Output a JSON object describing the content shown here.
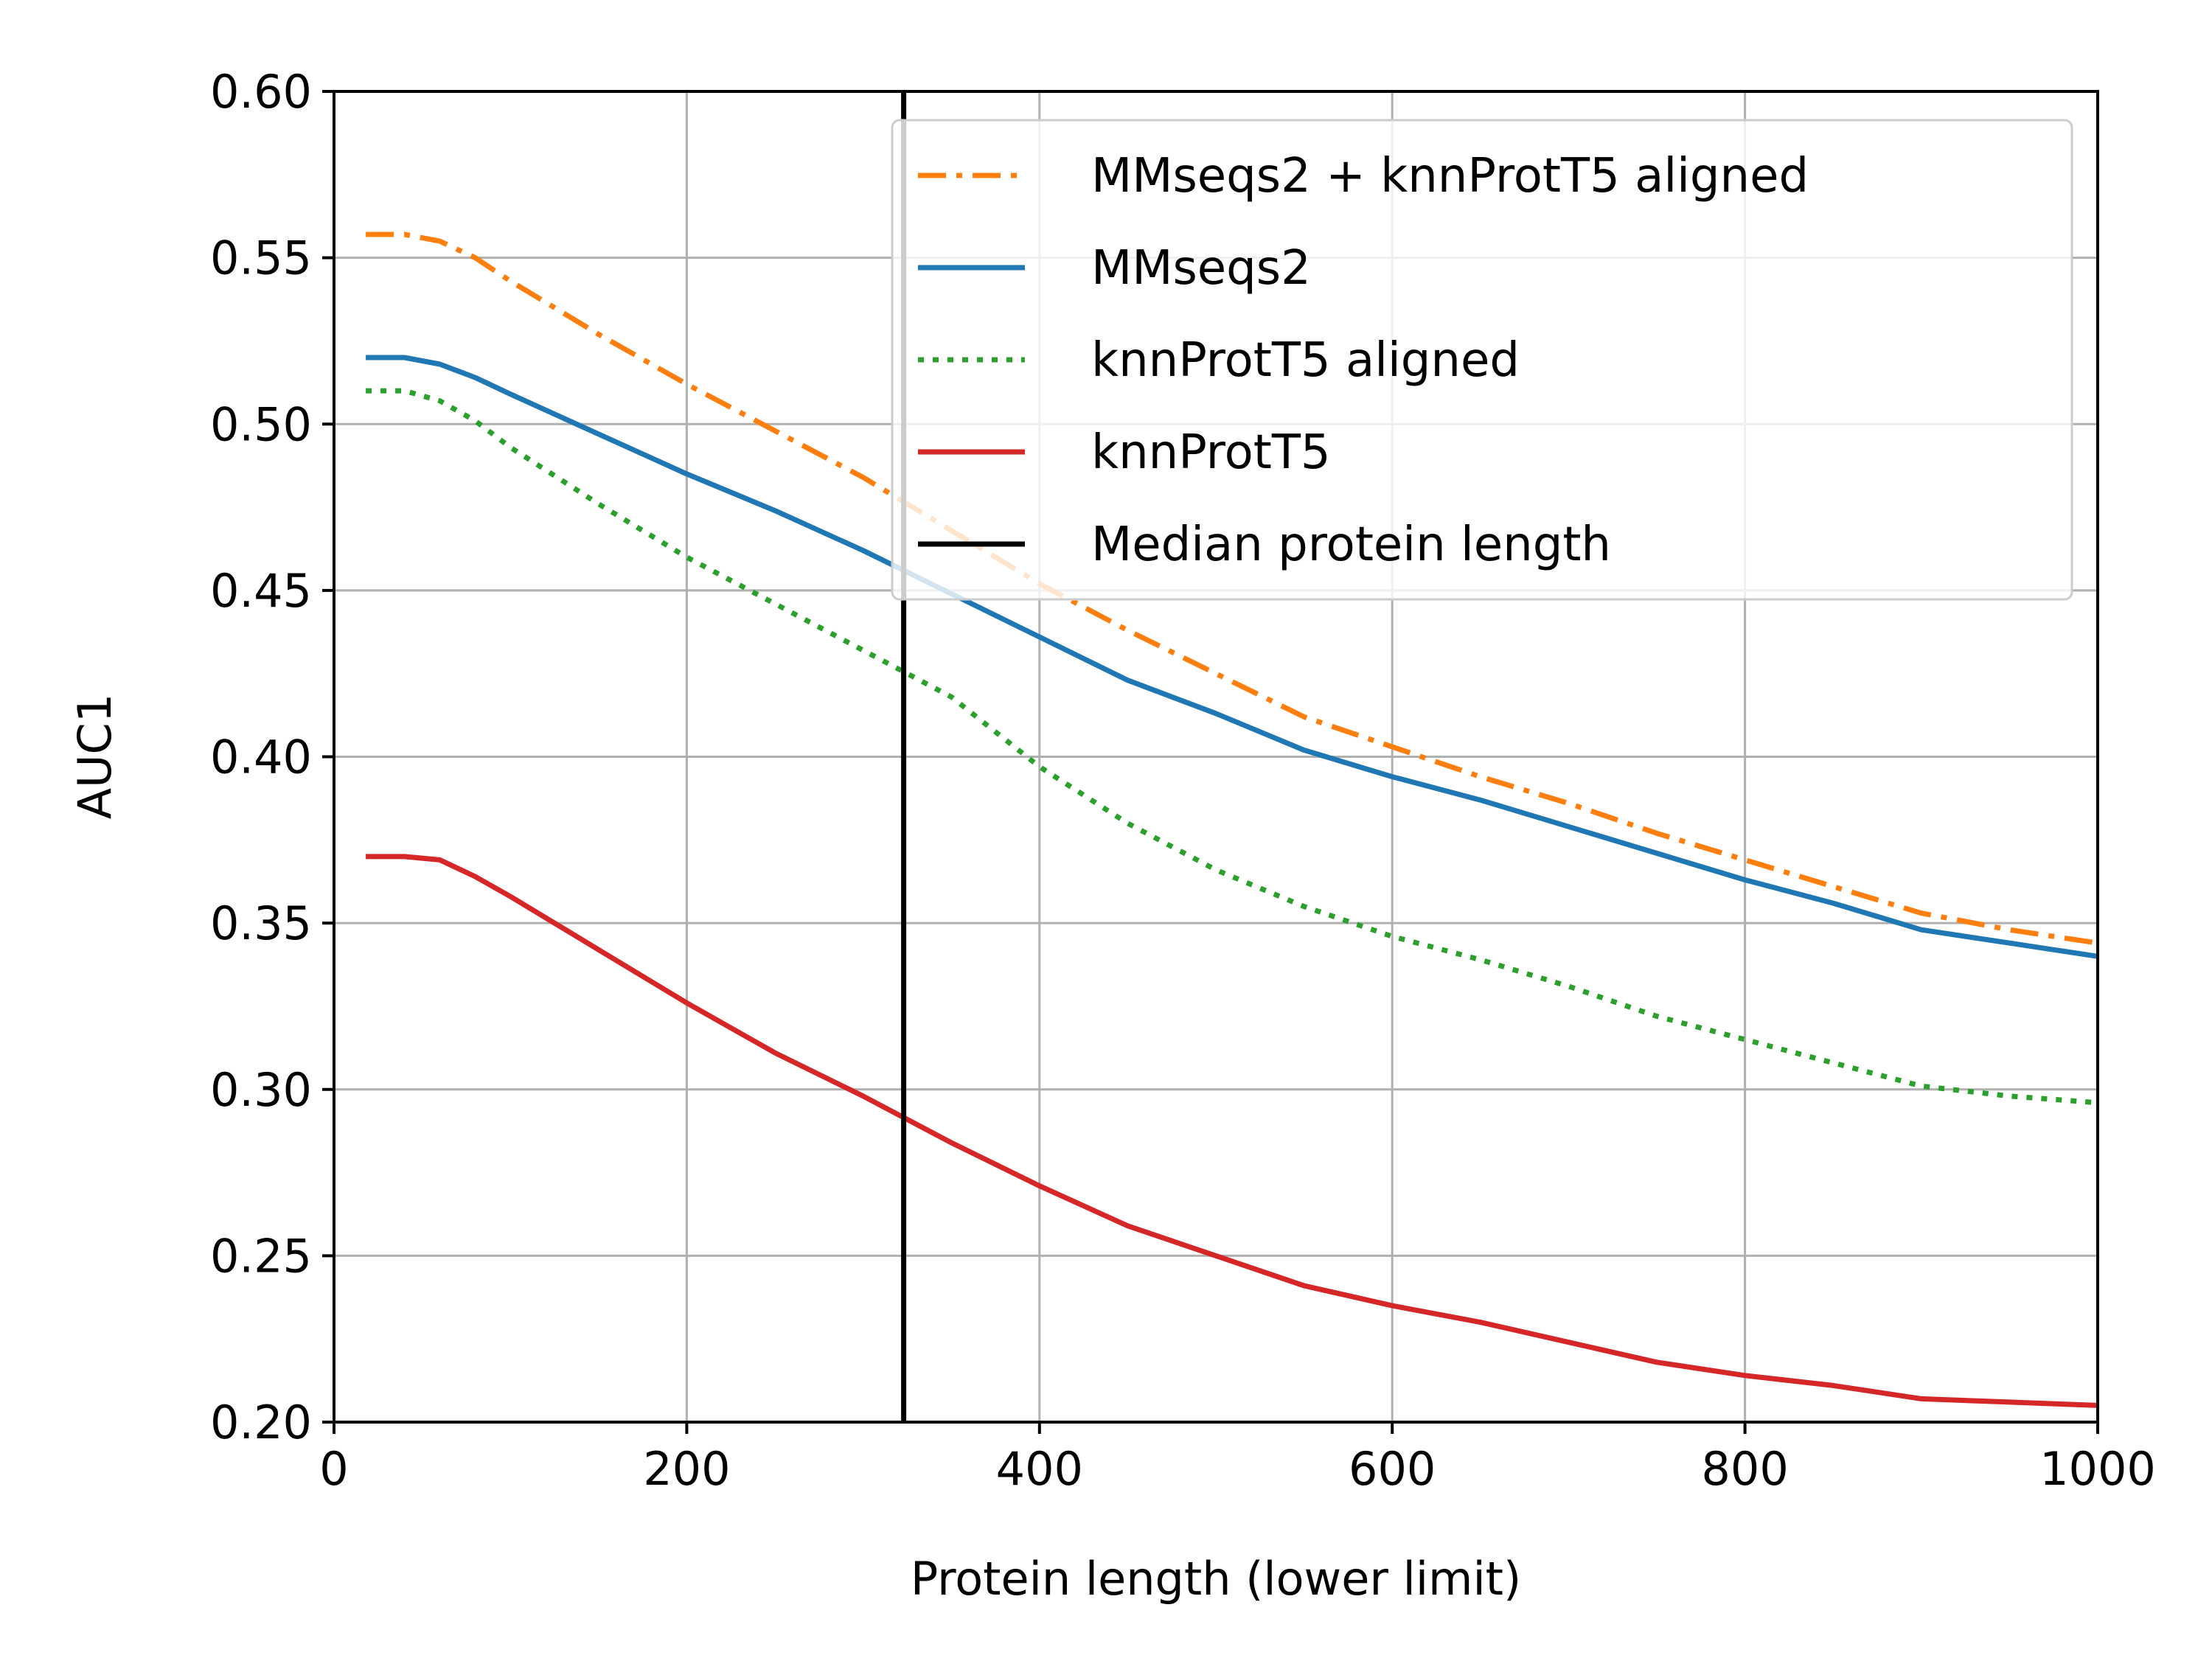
{
  "chart_data": {
    "type": "line",
    "xlabel": "Protein length (lower limit)",
    "ylabel": "AUC1",
    "xlim": [
      0,
      1000
    ],
    "ylim": [
      0.2,
      0.6
    ],
    "xticks": [
      0,
      200,
      400,
      600,
      800,
      1000
    ],
    "yticks": [
      0.2,
      0.25,
      0.3,
      0.35,
      0.4,
      0.45,
      0.5,
      0.55,
      0.6
    ],
    "grid": true,
    "legend_position": "top-right",
    "series": [
      {
        "name": "MMseqs2 + knnProtT5 aligned",
        "color": "#ff7f0e",
        "style": "dashdot",
        "x": [
          18,
          40,
          60,
          80,
          100,
          150,
          200,
          250,
          300,
          350,
          400,
          450,
          500,
          550,
          600,
          650,
          700,
          750,
          800,
          850,
          900,
          950,
          1000
        ],
        "y": [
          0.557,
          0.557,
          0.555,
          0.55,
          0.543,
          0.527,
          0.512,
          0.498,
          0.484,
          0.468,
          0.452,
          0.438,
          0.425,
          0.412,
          0.403,
          0.394,
          0.386,
          0.377,
          0.369,
          0.361,
          0.353,
          0.348,
          0.344
        ]
      },
      {
        "name": "MMseqs2",
        "color": "#1f77b4",
        "style": "solid",
        "x": [
          18,
          40,
          60,
          80,
          100,
          150,
          200,
          250,
          300,
          350,
          400,
          450,
          500,
          550,
          600,
          650,
          700,
          750,
          800,
          850,
          900,
          950,
          1000
        ],
        "y": [
          0.52,
          0.52,
          0.518,
          0.514,
          0.509,
          0.497,
          0.485,
          0.474,
          0.462,
          0.449,
          0.436,
          0.423,
          0.413,
          0.402,
          0.394,
          0.387,
          0.379,
          0.371,
          0.363,
          0.356,
          0.348,
          0.344,
          0.34
        ]
      },
      {
        "name": "knnProtT5 aligned",
        "color": "#2ca02c",
        "style": "dotted",
        "x": [
          18,
          40,
          60,
          80,
          100,
          150,
          200,
          250,
          300,
          350,
          400,
          450,
          500,
          550,
          600,
          650,
          700,
          750,
          800,
          850,
          900,
          950,
          1000
        ],
        "y": [
          0.51,
          0.51,
          0.507,
          0.501,
          0.493,
          0.476,
          0.46,
          0.446,
          0.432,
          0.418,
          0.397,
          0.38,
          0.366,
          0.355,
          0.346,
          0.339,
          0.331,
          0.322,
          0.315,
          0.308,
          0.301,
          0.298,
          0.296
        ]
      },
      {
        "name": "knnProtT5",
        "color": "#d62728",
        "style": "solid",
        "x": [
          18,
          40,
          60,
          80,
          100,
          150,
          200,
          250,
          300,
          350,
          400,
          450,
          500,
          550,
          600,
          650,
          700,
          750,
          800,
          850,
          900,
          950,
          1000
        ],
        "y": [
          0.37,
          0.37,
          0.369,
          0.364,
          0.358,
          0.342,
          0.326,
          0.311,
          0.298,
          0.284,
          0.271,
          0.259,
          0.25,
          0.241,
          0.235,
          0.23,
          0.224,
          0.218,
          0.214,
          0.211,
          0.207,
          0.206,
          0.205
        ]
      }
    ],
    "vlines": [
      {
        "name": "Median protein length",
        "x": 323,
        "color": "#000000"
      }
    ]
  }
}
